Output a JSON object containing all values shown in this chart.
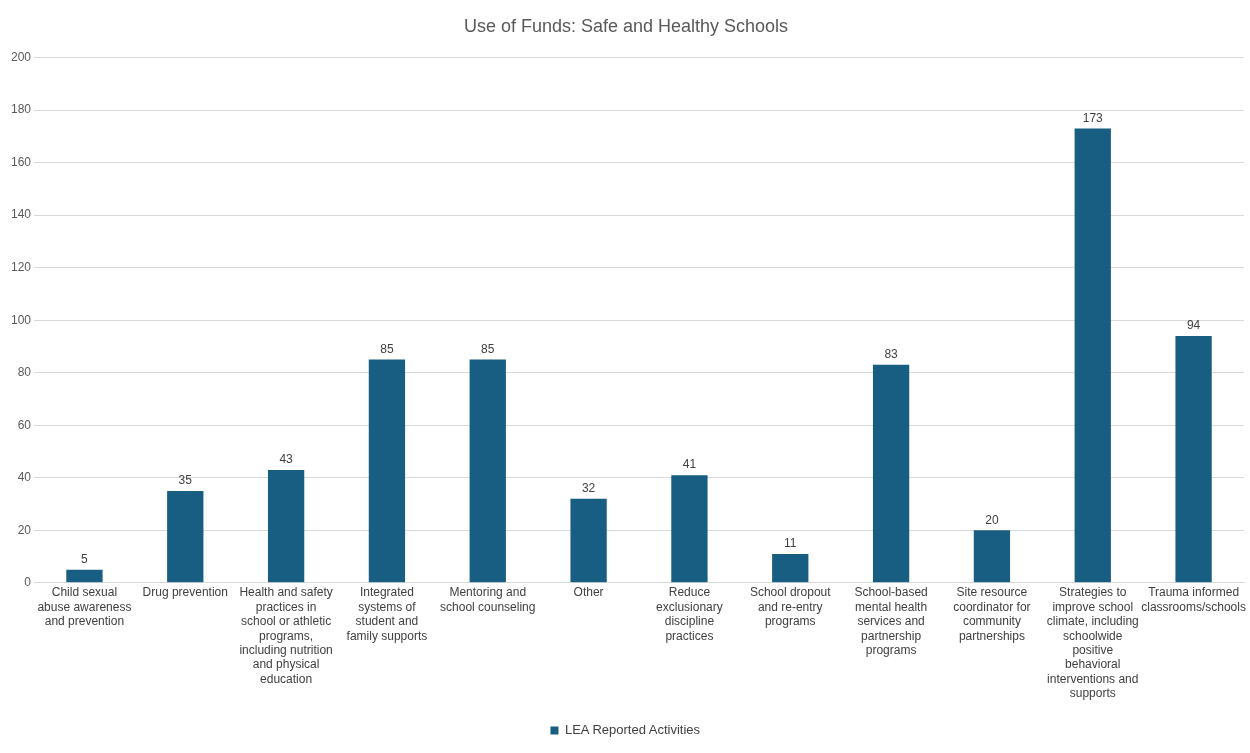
{
  "chart_data": {
    "type": "bar",
    "title": "Use of Funds: Safe and Healthy Schools",
    "categories": [
      "Child sexual abuse awareness and prevention",
      "Drug prevention",
      "Health and safety practices in school or athletic programs, including nutrition and physical education",
      "Integrated systems of student and family supports",
      "Mentoring and school counseling",
      "Other",
      "Reduce exclusionary discipline practices",
      "School dropout and re-entry programs",
      "School-based mental health services and partnership programs",
      "Site resource coordinator for community partnerships",
      "Strategies to improve school climate, including schoolwide positive behavioral interventions and supports",
      "Trauma informed classrooms/schools"
    ],
    "series": [
      {
        "name": "LEA Reported Activities",
        "color": "#175e82",
        "values": [
          5,
          35,
          43,
          85,
          85,
          32,
          41,
          11,
          83,
          20,
          173,
          94
        ]
      }
    ],
    "ylim": [
      0,
      200
    ],
    "yticks": [
      0,
      20,
      40,
      60,
      80,
      100,
      120,
      140,
      160,
      180,
      200
    ],
    "grid": "y",
    "legend": "bottom",
    "data_labels": true
  }
}
